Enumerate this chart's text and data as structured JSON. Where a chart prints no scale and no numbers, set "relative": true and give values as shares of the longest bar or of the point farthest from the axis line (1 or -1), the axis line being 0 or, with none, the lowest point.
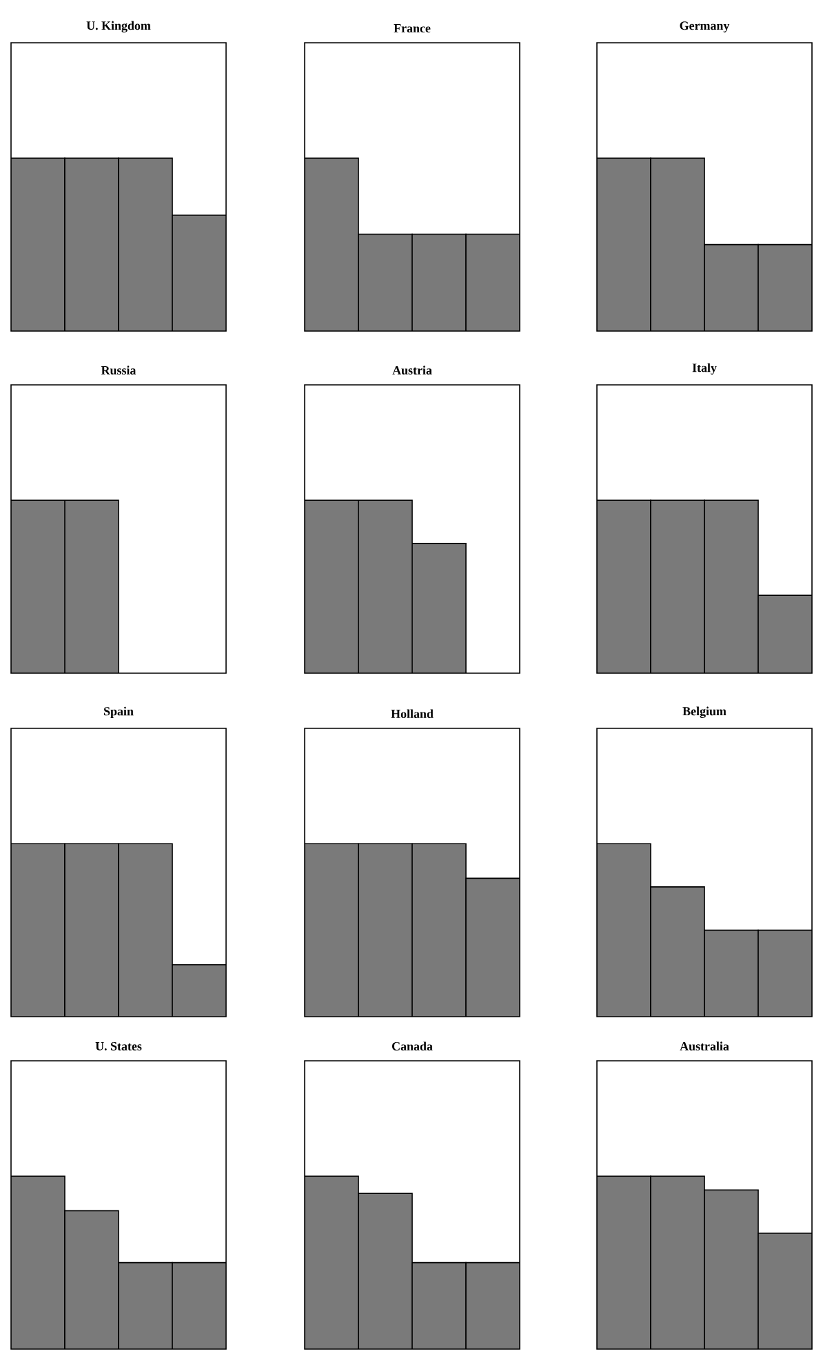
{
  "chart_data": [
    {
      "type": "bar",
      "title": "U. Kingdom",
      "categories": [
        null,
        null,
        null,
        null
      ],
      "values": [
        1,
        1,
        1,
        0.67
      ],
      "color": "#7a7a7a",
      "relative": true
    },
    {
      "type": "bar",
      "title": "France",
      "categories": [
        null,
        null,
        null,
        null
      ],
      "values": [
        1,
        0.56,
        0.56,
        0.56
      ],
      "color": "#7a7a7a",
      "relative": true
    },
    {
      "type": "bar",
      "title": "Germany",
      "categories": [
        null,
        null,
        null,
        null
      ],
      "values": [
        1,
        1,
        0.5,
        0.5
      ],
      "color": "#7a7a7a",
      "relative": true
    },
    {
      "type": "bar",
      "title": "Russia",
      "categories": [
        null,
        null,
        null,
        null
      ],
      "values": [
        1,
        1,
        0,
        0
      ],
      "color": "#7a7a7a",
      "relative": true
    },
    {
      "type": "bar",
      "title": "Austria",
      "categories": [
        null,
        null,
        null,
        null
      ],
      "values": [
        1,
        1,
        0.75,
        0
      ],
      "color": "#7a7a7a",
      "relative": true
    },
    {
      "type": "bar",
      "title": "Italy",
      "categories": [
        null,
        null,
        null,
        null
      ],
      "values": [
        1,
        1,
        1,
        0.45
      ],
      "color": "#7a7a7a",
      "relative": true
    },
    {
      "type": "bar",
      "title": "Spain",
      "categories": [
        null,
        null,
        null,
        null
      ],
      "values": [
        1,
        1,
        1,
        0.3
      ],
      "color": "#7a7a7a",
      "relative": true
    },
    {
      "type": "bar",
      "title": "Holland",
      "categories": [
        null,
        null,
        null,
        null
      ],
      "values": [
        1,
        1,
        1,
        0.8
      ],
      "color": "#7a7a7a",
      "relative": true
    },
    {
      "type": "bar",
      "title": "Belgium",
      "categories": [
        null,
        null,
        null,
        null
      ],
      "values": [
        1,
        0.75,
        0.5,
        0.5
      ],
      "color": "#7a7a7a",
      "relative": true
    },
    {
      "type": "bar",
      "title": "U. States",
      "categories": [
        null,
        null,
        null,
        null
      ],
      "values": [
        1,
        0.8,
        0.5,
        0.5
      ],
      "color": "#7a7a7a",
      "relative": true
    },
    {
      "type": "bar",
      "title": "Canada",
      "categories": [
        null,
        null,
        null,
        null
      ],
      "values": [
        1,
        0.9,
        0.5,
        0.5
      ],
      "color": "#7a7a7a",
      "relative": true
    },
    {
      "type": "bar",
      "title": "Australia",
      "categories": [
        null,
        null,
        null,
        null
      ],
      "values": [
        1,
        1,
        0.92,
        0.67
      ],
      "color": "#7a7a7a",
      "relative": true
    }
  ]
}
